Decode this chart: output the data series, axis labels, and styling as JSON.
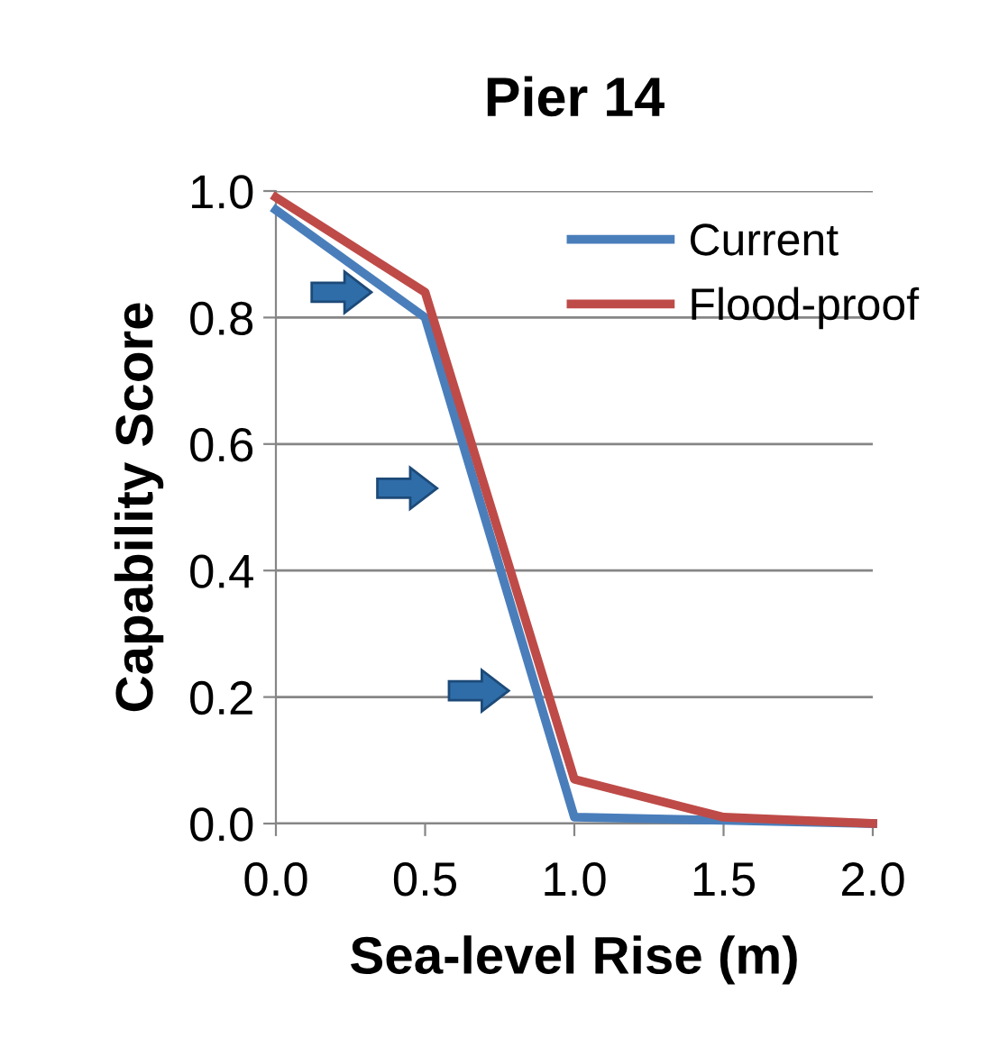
{
  "chart_data": {
    "type": "line",
    "title": "Pier 14",
    "xlabel": "Sea-level Rise (m)",
    "ylabel": "Capability Score",
    "x": [
      0.0,
      0.5,
      1.0,
      1.5,
      2.0
    ],
    "series": [
      {
        "name": "Current",
        "color": "#4a7ebb",
        "values": [
          0.97,
          0.8,
          0.01,
          0.005,
          0.0
        ]
      },
      {
        "name": "Flood-proof",
        "color": "#be4b48",
        "values": [
          0.99,
          0.84,
          0.07,
          0.01,
          0.0
        ]
      }
    ],
    "xlim": [
      0.0,
      2.0
    ],
    "xticks": [
      {
        "value": 0.0,
        "label": "0.0"
      },
      {
        "value": 0.5,
        "label": "0.5"
      },
      {
        "value": 1.0,
        "label": "1.0"
      },
      {
        "value": 1.5,
        "label": "1.5"
      },
      {
        "value": 2.0,
        "label": "2.0"
      }
    ],
    "ylim": [
      0.0,
      1.0
    ],
    "yticks": [
      {
        "value": 0.0,
        "label": "0.0"
      },
      {
        "value": 0.2,
        "label": "0.2"
      },
      {
        "value": 0.4,
        "label": "0.4"
      },
      {
        "value": 0.6,
        "label": "0.6"
      },
      {
        "value": 0.8,
        "label": "0.8"
      },
      {
        "value": 1.0,
        "label": "1.0"
      }
    ],
    "grid": "y",
    "legend": "top right",
    "marker": "none",
    "line_style": "solid"
  }
}
